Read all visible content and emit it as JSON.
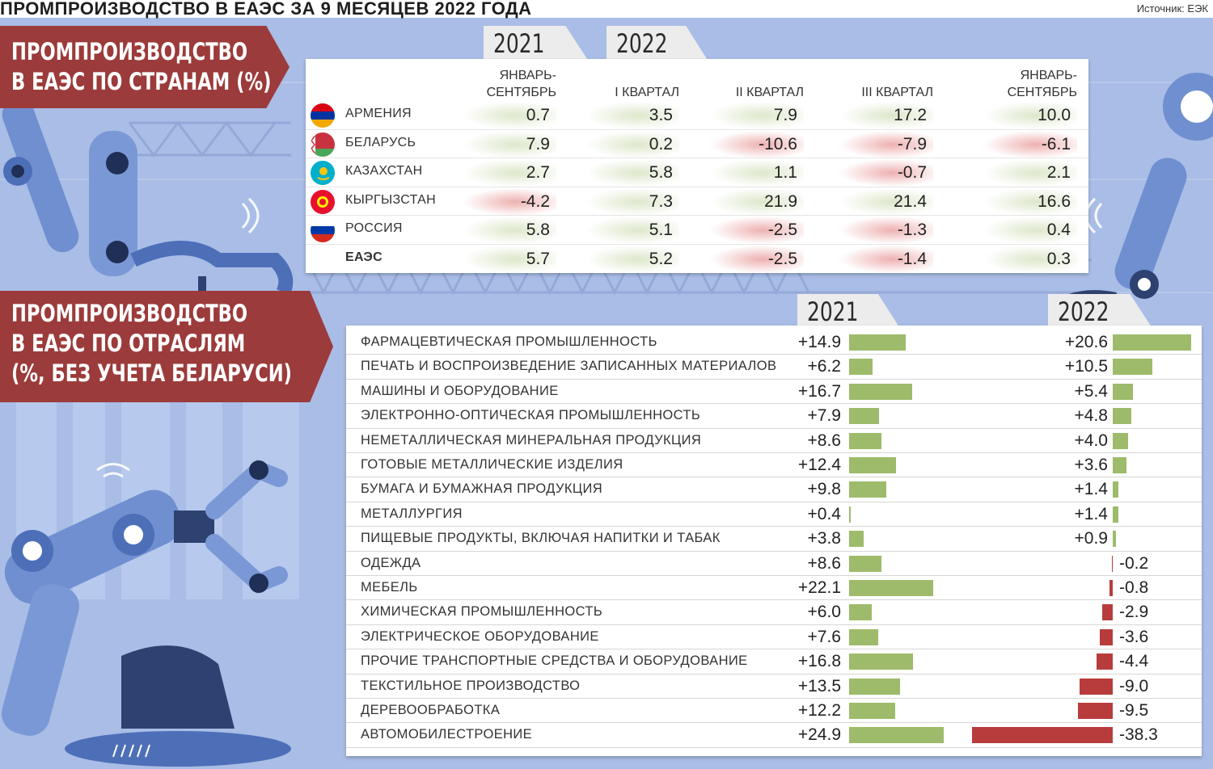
{
  "header": {
    "title": "ПРОМПРОИЗВОДСТВО В ЕАЭС ЗА 9 МЕСЯЦЕВ 2022 ГОДА",
    "source": "Источник: ЕЭК"
  },
  "section1": {
    "title_lines": [
      "ПРОМПРОИЗВОДСТВО",
      "В ЕАЭС ПО СТРАНАМ (%)"
    ],
    "year_tabs": [
      "2021",
      "2022"
    ]
  },
  "section2": {
    "title_lines": [
      "ПРОМПРОИЗВОДСТВО",
      "В ЕАЭС ПО ОТРАСЛЯМ",
      "(%, БЕЗ УЧЕТА БЕЛАРУСИ)"
    ],
    "year_tabs": [
      "2021",
      "2022"
    ]
  },
  "chart_data": [
    {
      "type": "table",
      "columns": [
        "ЯНВАРЬ-\nСЕНТЯБРЬ",
        "I КВАРТАЛ",
        "II КВАРТАЛ",
        "III КВАРТАЛ",
        "ЯНВАРЬ-\nСЕНТЯБРЬ"
      ],
      "column_years": [
        "2021",
        "2022",
        "2022",
        "2022",
        "2022"
      ],
      "rows": [
        {
          "name": "АРМЕНИЯ",
          "flag": "armenia-flag",
          "values": [
            "0.7",
            "3.5",
            "7.9",
            "17.2",
            "10.0"
          ]
        },
        {
          "name": "БЕЛАРУСЬ",
          "flag": "belarus-flag",
          "values": [
            "7.9",
            "0.2",
            "-10.6",
            "-7.9",
            "-6.1"
          ]
        },
        {
          "name": "КАЗАХСТАН",
          "flag": "kazakhstan-flag",
          "values": [
            "2.7",
            "5.8",
            "1.1",
            "-0.7",
            "2.1"
          ]
        },
        {
          "name": "КЫРГЫЗСТАН",
          "flag": "kyrgyzstan-flag",
          "values": [
            "-4.2",
            "7.3",
            "21.9",
            "21.4",
            "16.6"
          ]
        },
        {
          "name": "РОССИЯ",
          "flag": "russia-flag",
          "values": [
            "5.8",
            "5.1",
            "-2.5",
            "-1.3",
            "0.4"
          ]
        },
        {
          "name": "ЕАЭС",
          "flag": "",
          "bold": true,
          "values": [
            "5.7",
            "5.2",
            "-2.5",
            "-1.4",
            "0.3"
          ]
        }
      ],
      "colors": {
        "positive": "#9dbb6a",
        "negative": "#e07070"
      }
    },
    {
      "type": "bar",
      "categories": [
        "ФАРМАЦЕВТИЧЕСКАЯ ПРОМЫШЛЕННОСТЬ",
        "ПЕЧАТЬ И ВОСПРОИЗВЕДЕНИЕ ЗАПИСАННЫХ МАТЕРИАЛОВ",
        "МАШИНЫ И ОБОРУДОВАНИЕ",
        "ЭЛЕКТРОННО-ОПТИЧЕСКАЯ ПРОМЫШЛЕННОСТЬ",
        "НЕМЕТАЛЛИЧЕСКАЯ МИНЕРАЛЬНАЯ ПРОДУКЦИЯ",
        "ГОТОВЫЕ МЕТАЛЛИЧЕСКИЕ ИЗДЕЛИЯ",
        "БУМАГА И БУМАЖНАЯ ПРОДУКЦИЯ",
        "МЕТАЛЛУРГИЯ",
        "ПИЩЕВЫЕ ПРОДУКТЫ, ВКЛЮЧАЯ НАПИТКИ И ТАБАК",
        "ОДЕЖДА",
        "МЕБЕЛЬ",
        "ХИМИЧЕСКАЯ ПРОМЫШЛЕННОСТЬ",
        "ЭЛЕКТРИЧЕСКОЕ ОБОРУДОВАНИЕ",
        "ПРОЧИЕ ТРАНСПОРТНЫЕ СРЕДСТВА И ОБОРУДОВАНИЕ",
        "ТЕКСТИЛЬНОЕ ПРОИЗВОДСТВО",
        "ДЕРЕВООБРАБОТКА",
        "АВТОМОБИЛЕСТРОЕНИЕ"
      ],
      "series": [
        {
          "name": "2021",
          "values": [
            14.9,
            6.2,
            16.7,
            7.9,
            8.6,
            12.4,
            9.8,
            0.4,
            3.8,
            8.6,
            22.1,
            6.0,
            7.6,
            16.8,
            13.5,
            12.2,
            24.9
          ]
        },
        {
          "name": "2022",
          "values": [
            20.6,
            10.5,
            5.4,
            4.8,
            4.0,
            3.6,
            1.4,
            1.4,
            0.9,
            -0.2,
            -0.8,
            -2.9,
            -3.6,
            -4.4,
            -9.0,
            -9.5,
            -38.3
          ]
        }
      ],
      "labels_2021": [
        "+14.9",
        "+6.2",
        "+16.7",
        "+7.9",
        "+8.6",
        "+12.4",
        "+9.8",
        "+0.4",
        "+3.8",
        "+8.6",
        "+22.1",
        "+6.0",
        "+7.6",
        "+16.8",
        "+13.5",
        "+12.2",
        "+24.9"
      ],
      "labels_2022": [
        "+20.6",
        "+10.5",
        "+5.4",
        "+4.8",
        "+4.0",
        "+3.6",
        "+1.4",
        "+1.4",
        "+0.9",
        "-0.2",
        "-0.8",
        "-2.9",
        "-3.6",
        "-4.4",
        "-9.0",
        "-9.5",
        "-38.3"
      ],
      "colors": {
        "positive": "#9dbb6a",
        "negative": "#b83c3c"
      }
    }
  ]
}
